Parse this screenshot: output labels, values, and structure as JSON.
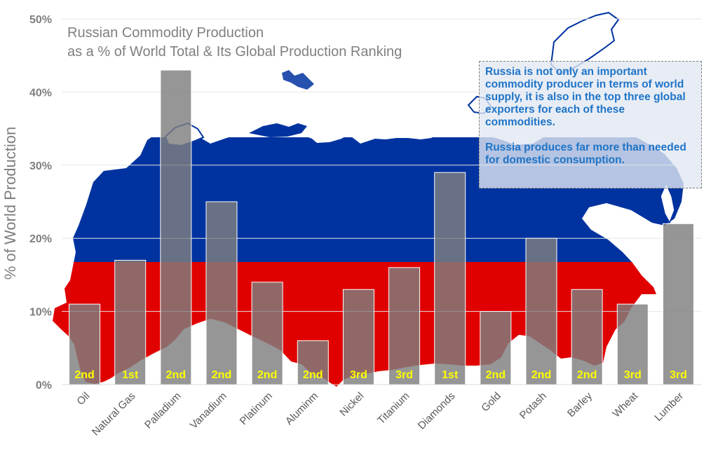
{
  "chart_data": {
    "type": "bar",
    "title": "Russian Commodity Production",
    "subtitle": "as a % of World Total & Its Global Production Ranking",
    "ylabel": "% of World Production",
    "xlabel": "",
    "ylim": [
      0,
      50
    ],
    "y_ticks": [
      "0%",
      "10%",
      "20%",
      "30%",
      "40%",
      "50%"
    ],
    "grid": true,
    "categories": [
      "Oil",
      "Natural Gas",
      "Palladium",
      "Vanadium",
      "Platinum",
      "Aluminm",
      "Nickel",
      "Titanium",
      "Diamonds",
      "Gold",
      "Potash",
      "Barley",
      "Wheat",
      "Lumber"
    ],
    "values": [
      11,
      17,
      43,
      25,
      14,
      6,
      13,
      16,
      29,
      10,
      20,
      13,
      11,
      22
    ],
    "rankings": [
      "2nd",
      "1st",
      "2nd",
      "2nd",
      "2nd",
      "2nd",
      "3rd",
      "3rd",
      "1st",
      "2nd",
      "2nd",
      "2nd",
      "3rd",
      "3rd"
    ],
    "annotation": {
      "text1": "Russia is not only an important commodity producer in terms of world supply, it is also in the top three global exporters for each of these commodities.",
      "text2": "Russia produces far more than needed for domestic consumption."
    },
    "colors": {
      "bar": "#7f7f7f",
      "rank_label": "#ffff00",
      "title": "#7f7f7f",
      "annotation_text": "#1f74c7",
      "flag_blue": "#0033a0",
      "flag_red": "#e00000"
    }
  }
}
